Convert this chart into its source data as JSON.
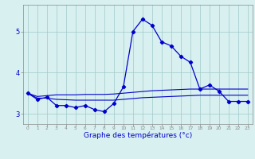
{
  "x": [
    0,
    1,
    2,
    3,
    4,
    5,
    6,
    7,
    8,
    9,
    10,
    11,
    12,
    13,
    14,
    15,
    16,
    17,
    18,
    19,
    20,
    21,
    22,
    23
  ],
  "temp_main": [
    3.5,
    3.35,
    3.4,
    3.2,
    3.2,
    3.15,
    3.2,
    3.1,
    3.05,
    3.25,
    3.65,
    5.0,
    5.3,
    5.15,
    4.75,
    4.65,
    4.4,
    4.25,
    3.6,
    3.7,
    3.55,
    3.3,
    3.3,
    3.3
  ],
  "temp_ref1": [
    3.5,
    3.42,
    3.44,
    3.46,
    3.46,
    3.46,
    3.47,
    3.47,
    3.47,
    3.48,
    3.5,
    3.52,
    3.54,
    3.56,
    3.57,
    3.58,
    3.59,
    3.6,
    3.6,
    3.6,
    3.6,
    3.6,
    3.6,
    3.6
  ],
  "temp_ref2": [
    3.5,
    3.38,
    3.38,
    3.35,
    3.34,
    3.33,
    3.33,
    3.33,
    3.33,
    3.33,
    3.35,
    3.37,
    3.39,
    3.4,
    3.41,
    3.42,
    3.43,
    3.44,
    3.45,
    3.45,
    3.45,
    3.45,
    3.45,
    3.45
  ],
  "bg_color": "#d8f0f0",
  "line_color": "#0000cc",
  "grid_color": "#a0c8c8",
  "xlabel": "Graphe des températures (°c)",
  "xtick_labels": [
    "0",
    "1",
    "2",
    "3",
    "4",
    "5",
    "6",
    "7",
    "8",
    "9",
    "10",
    "11",
    "12",
    "13",
    "14",
    "15",
    "16",
    "17",
    "18",
    "19",
    "20",
    "21",
    "22",
    "23"
  ],
  "yticks": [
    3,
    4,
    5
  ],
  "ylim": [
    2.75,
    5.65
  ],
  "xlim": [
    -0.5,
    23.5
  ]
}
